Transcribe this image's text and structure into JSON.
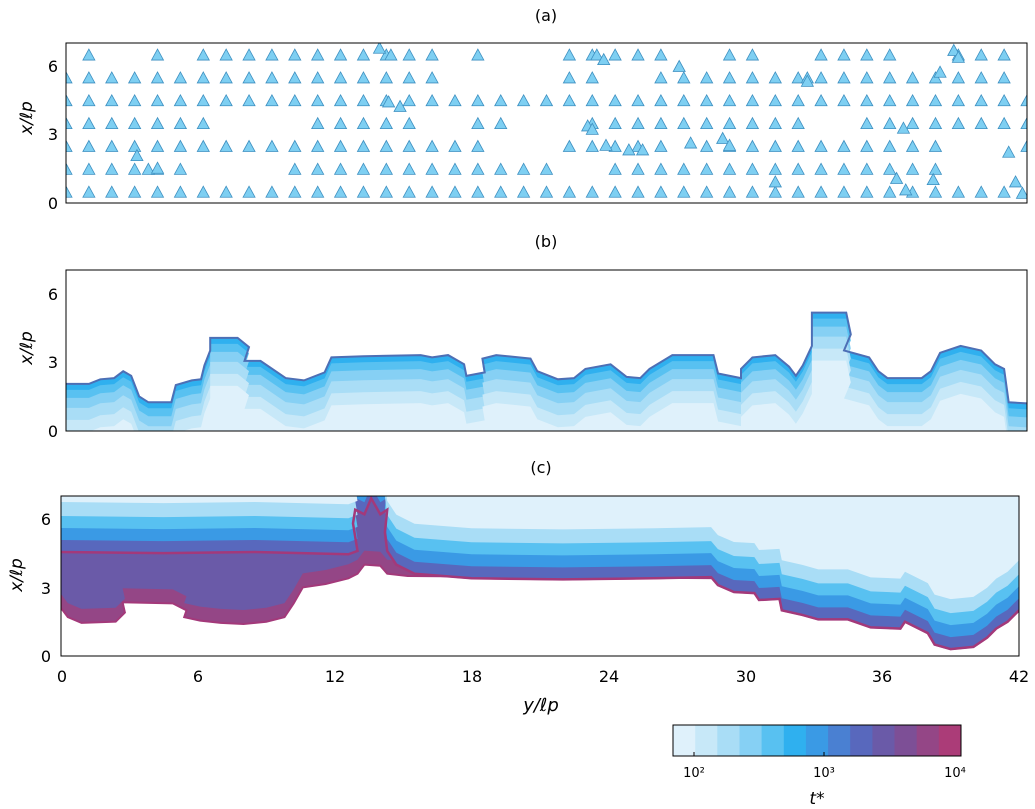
{
  "colors": {
    "marker_fill": "#7ecff2",
    "marker_stroke": "#3d8fc0",
    "front_stroke": "#4d6fb5",
    "colormap": [
      "#dff1fb",
      "#c7e8f8",
      "#a9ddf6",
      "#86d0f4",
      "#58c1f1",
      "#2fb0ef",
      "#3a9ae5",
      "#4a80d2",
      "#5868bd",
      "#6a5aa8",
      "#7d4f96",
      "#944686",
      "#ab3c78"
    ]
  },
  "chart_data": [
    {
      "panel": "(a)",
      "type": "scatter",
      "marker": "triangle",
      "xlabel": "",
      "ylabel": "x/ℓp",
      "xlim": [
        0,
        42
      ],
      "ylim": [
        0,
        7
      ],
      "yticks": [
        "0",
        "3",
        "6"
      ],
      "rows_y": [
        0.45,
        1.45,
        2.45,
        3.45,
        4.45,
        5.45,
        6.45
      ],
      "lattice_x": [
        0,
        1,
        2,
        3,
        4,
        5,
        6,
        7,
        8,
        9,
        10,
        11,
        12,
        13,
        14,
        15,
        16,
        17,
        18,
        19,
        20,
        21,
        22,
        23,
        24,
        25,
        26,
        27,
        28,
        29,
        30,
        31,
        32,
        33,
        34,
        35,
        36,
        37,
        38,
        39,
        40,
        41,
        42
      ],
      "missing": [
        [
          0,
          6.45
        ],
        [
          2,
          6.45
        ],
        [
          3,
          6.45
        ],
        [
          5,
          6.45
        ],
        [
          17,
          6.45
        ],
        [
          19,
          6.45
        ],
        [
          20,
          6.45
        ],
        [
          21,
          6.45
        ],
        [
          27,
          6.45
        ],
        [
          28,
          6.45
        ],
        [
          31,
          6.45
        ],
        [
          32,
          6.45
        ],
        [
          37,
          6.45
        ],
        [
          38,
          6.45
        ],
        [
          42,
          6.45
        ],
        [
          17,
          5.45
        ],
        [
          18,
          5.45
        ],
        [
          19,
          5.45
        ],
        [
          20,
          5.45
        ],
        [
          21,
          5.45
        ],
        [
          24,
          5.45
        ],
        [
          25,
          5.45
        ],
        [
          42,
          5.45
        ],
        [
          7,
          3.45
        ],
        [
          8,
          3.45
        ],
        [
          9,
          3.45
        ],
        [
          10,
          3.45
        ],
        [
          16,
          3.45
        ],
        [
          17,
          3.45
        ],
        [
          20,
          3.45
        ],
        [
          21,
          3.45
        ],
        [
          22,
          3.45
        ],
        [
          33,
          3.45
        ],
        [
          34,
          3.45
        ],
        [
          19,
          2.45
        ],
        [
          20,
          2.45
        ],
        [
          21,
          2.45
        ],
        [
          27,
          2.45
        ],
        [
          39,
          2.45
        ],
        [
          40,
          2.45
        ],
        [
          41,
          2.45
        ],
        [
          6,
          1.45
        ],
        [
          7,
          1.45
        ],
        [
          8,
          1.45
        ],
        [
          9,
          1.45
        ],
        [
          22,
          1.45
        ],
        [
          23,
          1.45
        ],
        [
          39,
          1.45
        ],
        [
          40,
          1.45
        ],
        [
          41,
          1.45
        ],
        [
          42,
          1.45
        ],
        [
          42,
          0.45
        ]
      ],
      "extra_points": [
        [
          13.7,
          6.75
        ],
        [
          14.2,
          6.45
        ],
        [
          23.2,
          6.45
        ],
        [
          23.5,
          6.25
        ],
        [
          26.8,
          5.95
        ],
        [
          32.4,
          5.45
        ],
        [
          32.4,
          5.3
        ],
        [
          38.2,
          5.7
        ],
        [
          38.8,
          6.65
        ],
        [
          39.0,
          6.35
        ],
        [
          14.1,
          4.4
        ],
        [
          14.6,
          4.2
        ],
        [
          22.8,
          3.35
        ],
        [
          23.0,
          3.2
        ],
        [
          36.6,
          3.25
        ],
        [
          3.1,
          2.05
        ],
        [
          23.6,
          2.5
        ],
        [
          24.6,
          2.3
        ],
        [
          25.2,
          2.3
        ],
        [
          27.3,
          2.6
        ],
        [
          28.7,
          2.8
        ],
        [
          29.0,
          2.5
        ],
        [
          41.2,
          2.2
        ],
        [
          3.6,
          1.45
        ],
        [
          4.0,
          1.5
        ],
        [
          31.0,
          0.9
        ],
        [
          36.3,
          1.05
        ],
        [
          37.9,
          1.0
        ],
        [
          41.5,
          0.9
        ],
        [
          36.7,
          0.55
        ],
        [
          41.8,
          0.4
        ]
      ]
    },
    {
      "panel": "(b)",
      "type": "area",
      "xlabel": "",
      "ylabel": "x/ℓp",
      "xlim": [
        0,
        42
      ],
      "ylim": [
        0,
        7
      ],
      "yticks": [
        "0",
        "3",
        "6"
      ],
      "front_profile": [
        [
          0,
          2.05
        ],
        [
          1.0,
          2.05
        ],
        [
          1.5,
          2.25
        ],
        [
          2.1,
          2.3
        ],
        [
          2.5,
          2.6
        ],
        [
          2.85,
          2.4
        ],
        [
          3.2,
          1.5
        ],
        [
          3.6,
          1.25
        ],
        [
          4.6,
          1.25
        ],
        [
          4.8,
          2.0
        ],
        [
          5.5,
          2.2
        ],
        [
          5.9,
          2.25
        ],
        [
          6.05,
          2.85
        ],
        [
          6.3,
          3.5
        ],
        [
          6.3,
          4.05
        ],
        [
          7.5,
          4.05
        ],
        [
          8.0,
          3.65
        ],
        [
          7.8,
          3.05
        ],
        [
          8.5,
          3.05
        ],
        [
          9.6,
          2.3
        ],
        [
          10.4,
          2.2
        ],
        [
          11.3,
          2.55
        ],
        [
          11.6,
          3.2
        ],
        [
          13.0,
          3.25
        ],
        [
          15.5,
          3.3
        ],
        [
          16.0,
          3.2
        ],
        [
          16.7,
          3.3
        ],
        [
          17.4,
          2.9
        ],
        [
          17.5,
          2.4
        ],
        [
          18.3,
          2.55
        ],
        [
          18.2,
          3.15
        ],
        [
          18.8,
          3.3
        ],
        [
          20.3,
          3.15
        ],
        [
          20.6,
          2.6
        ],
        [
          21.5,
          2.25
        ],
        [
          22.2,
          2.3
        ],
        [
          22.7,
          2.7
        ],
        [
          23.8,
          2.9
        ],
        [
          24.5,
          2.35
        ],
        [
          25.1,
          2.3
        ],
        [
          25.5,
          2.7
        ],
        [
          26.5,
          3.3
        ],
        [
          28.3,
          3.3
        ],
        [
          28.5,
          2.5
        ],
        [
          29.5,
          2.3
        ],
        [
          29.5,
          2.7
        ],
        [
          30.0,
          3.2
        ],
        [
          31.0,
          3.3
        ],
        [
          31.6,
          2.8
        ],
        [
          31.9,
          2.4
        ],
        [
          32.2,
          2.85
        ],
        [
          32.6,
          3.7
        ],
        [
          32.6,
          5.15
        ],
        [
          34.1,
          5.15
        ],
        [
          34.3,
          4.2
        ],
        [
          34.0,
          3.5
        ],
        [
          35.1,
          3.2
        ],
        [
          35.5,
          2.6
        ],
        [
          35.9,
          2.3
        ],
        [
          37.4,
          2.3
        ],
        [
          37.8,
          2.6
        ],
        [
          38.2,
          3.4
        ],
        [
          39.1,
          3.7
        ],
        [
          40.0,
          3.5
        ],
        [
          40.6,
          2.9
        ],
        [
          41.0,
          2.7
        ],
        [
          41.2,
          1.25
        ],
        [
          42,
          1.2
        ]
      ]
    },
    {
      "panel": "(c)",
      "type": "area",
      "xlabel": "y/ℓp",
      "ylabel": "x/ℓp",
      "xlim": [
        0,
        42
      ],
      "ylim": [
        0,
        7
      ],
      "xticks": [
        "0",
        "6",
        "12",
        "18",
        "24",
        "30",
        "36",
        "42"
      ],
      "yticks": [
        "0",
        "3",
        "6"
      ],
      "front_profile": [
        [
          0,
          4.55
        ],
        [
          4.5,
          4.5
        ],
        [
          8.5,
          4.55
        ],
        [
          12.6,
          4.45
        ],
        [
          13.0,
          4.6
        ],
        [
          12.8,
          5.8
        ],
        [
          12.9,
          6.4
        ],
        [
          13.3,
          6.2
        ],
        [
          13.6,
          6.9
        ],
        [
          14.0,
          6.2
        ],
        [
          14.3,
          6.4
        ],
        [
          14.2,
          5.4
        ],
        [
          14.3,
          4.6
        ],
        [
          14.7,
          4.0
        ],
        [
          15.5,
          3.6
        ],
        [
          18.0,
          3.4
        ],
        [
          22.0,
          3.35
        ],
        [
          26.0,
          3.4
        ],
        [
          28.5,
          3.45
        ],
        [
          28.8,
          3.1
        ],
        [
          29.5,
          2.8
        ],
        [
          30.4,
          2.75
        ],
        [
          30.6,
          2.45
        ],
        [
          31.5,
          2.5
        ],
        [
          31.6,
          2.0
        ],
        [
          32.5,
          1.8
        ],
        [
          33.2,
          1.6
        ],
        [
          34.5,
          1.6
        ],
        [
          35.5,
          1.25
        ],
        [
          36.8,
          1.2
        ],
        [
          37.0,
          1.5
        ],
        [
          38.0,
          1.0
        ],
        [
          38.3,
          0.5
        ],
        [
          39.0,
          0.3
        ],
        [
          40.0,
          0.4
        ],
        [
          40.6,
          0.8
        ],
        [
          41.0,
          1.2
        ],
        [
          41.5,
          1.5
        ],
        [
          42,
          2.0
        ]
      ],
      "lower_edge": [
        [
          0,
          2.1
        ],
        [
          0.3,
          1.7
        ],
        [
          0.9,
          1.45
        ],
        [
          2.4,
          1.5
        ],
        [
          2.8,
          1.9
        ],
        [
          2.7,
          2.35
        ],
        [
          4.9,
          2.3
        ],
        [
          5.5,
          2.0
        ],
        [
          5.4,
          1.7
        ],
        [
          6.1,
          1.55
        ],
        [
          7.0,
          1.45
        ],
        [
          8.0,
          1.4
        ],
        [
          9.0,
          1.5
        ],
        [
          9.8,
          1.7
        ],
        [
          10.2,
          2.3
        ],
        [
          10.6,
          3.0
        ],
        [
          11.6,
          3.15
        ],
        [
          12.6,
          3.4
        ],
        [
          13.0,
          3.6
        ],
        [
          13.3,
          4.0
        ],
        [
          14.0,
          3.95
        ],
        [
          14.3,
          3.6
        ],
        [
          15.2,
          3.5
        ],
        [
          29.0,
          3.4
        ],
        [
          42,
          3.6
        ]
      ]
    }
  ],
  "colorbar": {
    "label": "t*",
    "ticks": [
      "10²",
      "10³",
      "10⁴"
    ]
  }
}
